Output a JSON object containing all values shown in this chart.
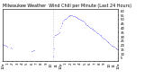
{
  "title": "Milwaukee Weather  Wind Chill per Minute (Last 24 Hours)",
  "yticks": [
    60,
    55,
    50,
    45,
    40,
    35,
    30,
    25,
    20,
    15,
    10,
    5
  ],
  "ylim": [
    2,
    62
  ],
  "xlim": [
    0,
    143
  ],
  "line_color": "#0000ff",
  "background_color": "#ffffff",
  "grid_color": "#888888",
  "title_fontsize": 3.5,
  "tick_fontsize": 2.8,
  "data_segments": [
    {
      "x": [
        0,
        1,
        2,
        3,
        4,
        5
      ],
      "y": [
        22,
        21,
        21,
        20,
        20,
        19
      ]
    },
    {
      "x": [
        10,
        11
      ],
      "y": [
        18,
        17
      ]
    },
    {
      "x": [
        36,
        37,
        38,
        39
      ],
      "y": [
        13,
        13,
        14,
        14
      ]
    },
    {
      "x": [
        62,
        63,
        64,
        65,
        66,
        67,
        68,
        69,
        70,
        71,
        72,
        73,
        74,
        75,
        76,
        77,
        78,
        79,
        80,
        81,
        82,
        83,
        84,
        85,
        86,
        87,
        88,
        89,
        90,
        91,
        92,
        93,
        94,
        95,
        96,
        97,
        98,
        99,
        100,
        101,
        102,
        103,
        104,
        105,
        106,
        107,
        108,
        109,
        110,
        111,
        112,
        113,
        114,
        115,
        116,
        117,
        118,
        119,
        120,
        121,
        122,
        123,
        124,
        125,
        126,
        127,
        128,
        129,
        130,
        131,
        132,
        133,
        134,
        135,
        136,
        137,
        138,
        139,
        140,
        141,
        142,
        143
      ],
      "y": [
        7,
        16,
        30,
        32,
        32,
        33,
        33,
        34,
        35,
        40,
        43,
        46,
        47,
        49,
        50,
        51,
        51,
        52,
        53,
        54,
        54,
        55,
        55,
        55,
        55,
        54,
        54,
        54,
        53,
        53,
        52,
        52,
        51,
        51,
        50,
        50,
        49,
        49,
        48,
        47,
        46,
        45,
        44,
        44,
        43,
        42,
        41,
        40,
        39,
        39,
        38,
        37,
        37,
        36,
        35,
        34,
        34,
        33,
        32,
        32,
        31,
        30,
        29,
        28,
        28,
        27,
        26,
        25,
        24,
        24,
        23,
        22,
        21,
        20,
        20,
        19,
        19,
        18,
        17,
        16,
        15,
        15
      ]
    }
  ],
  "vlines_x": [
    0,
    62
  ],
  "xtick_positions": [
    0,
    6,
    12,
    18,
    24,
    30,
    36,
    42,
    48,
    54,
    60,
    66,
    72,
    78,
    84,
    90,
    96,
    102,
    108,
    114,
    120,
    126,
    132,
    138,
    143
  ],
  "xtick_labels": [
    "12a",
    "1",
    "2",
    "3",
    "4",
    "5",
    "6",
    "7",
    "8",
    "9",
    "10",
    "11",
    "12p",
    "1",
    "2",
    "3",
    "4",
    "5",
    "6",
    "7",
    "8",
    "9",
    "10",
    "11",
    "12a"
  ]
}
